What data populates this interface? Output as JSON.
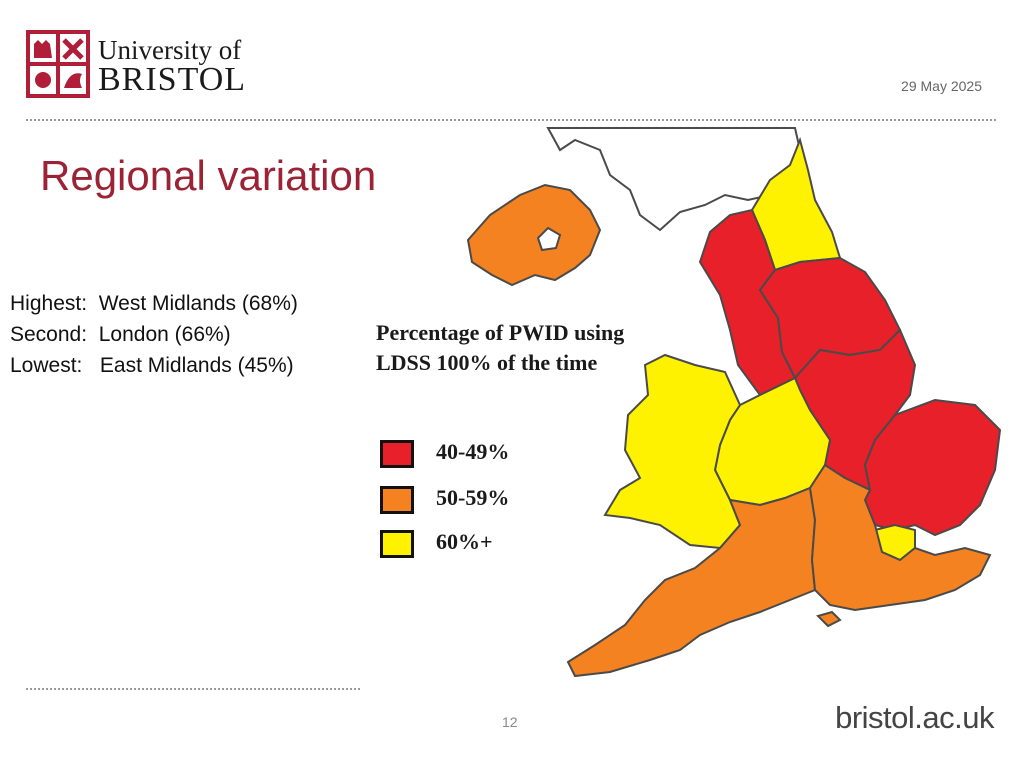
{
  "header": {
    "logo": {
      "line1": "University of",
      "line2": "BRISTOL"
    },
    "date": "29 May 2025"
  },
  "title": "Regional variation",
  "stats": [
    {
      "label": "Highest:",
      "value": "West Midlands (68%)"
    },
    {
      "label": "Second:",
      "value": "London (66%)"
    },
    {
      "label": "Lowest:",
      "value": "East Midlands (45%)"
    }
  ],
  "map": {
    "legend": {
      "title": "Percentage of PWID using LDSS 100% of the time",
      "items": [
        {
          "label": "40-49%",
          "color": "#e8202a"
        },
        {
          "label": "50-59%",
          "color": "#f58220"
        },
        {
          "label": "60%+",
          "color": "#fff200"
        }
      ]
    },
    "colors": {
      "outline": "#4a4a4a",
      "land_uncolored": "#ffffff"
    }
  },
  "footer": {
    "page": "12",
    "site": "bristol.ac.uk"
  }
}
